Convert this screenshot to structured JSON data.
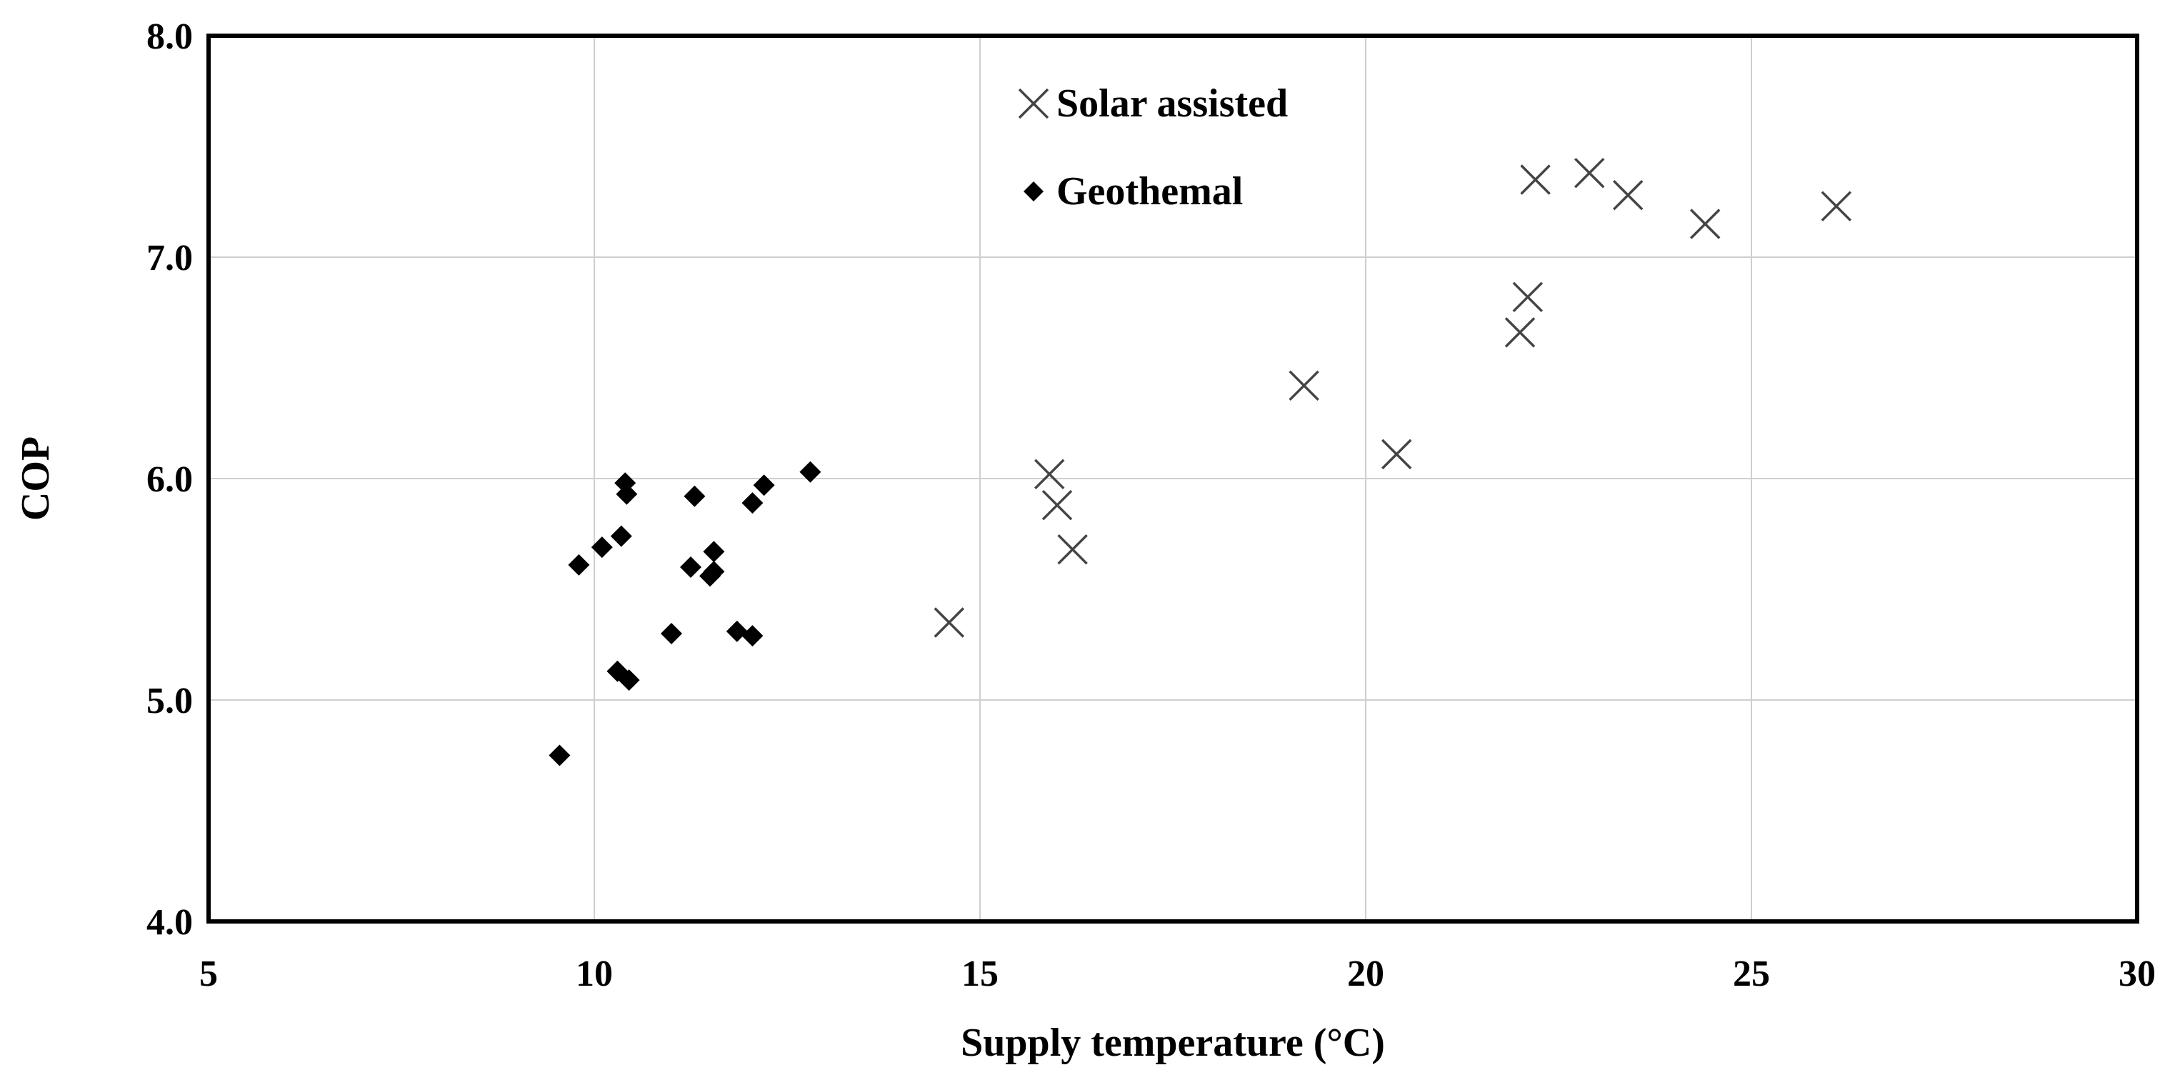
{
  "chart_data": {
    "type": "scatter",
    "title": "",
    "xlabel": "Supply temperature (°C)",
    "ylabel": "COP",
    "xlim": [
      5,
      30
    ],
    "ylim": [
      4.0,
      8.0
    ],
    "x_ticks": [
      "5",
      "10",
      "15",
      "20",
      "25",
      "30"
    ],
    "y_ticks": [
      "4.0",
      "5.0",
      "6.0",
      "7.0",
      "8.0"
    ],
    "grid": true,
    "legend_position": "top-center",
    "series": [
      {
        "name": "Solar assisted",
        "marker": "cross",
        "color": "#444444",
        "points": [
          [
            14.6,
            5.35
          ],
          [
            15.9,
            6.02
          ],
          [
            16.0,
            5.88
          ],
          [
            16.2,
            5.68
          ],
          [
            19.2,
            6.42
          ],
          [
            20.4,
            6.11
          ],
          [
            22.0,
            6.66
          ],
          [
            22.1,
            6.82
          ],
          [
            22.2,
            7.35
          ],
          [
            22.9,
            7.38
          ],
          [
            23.4,
            7.28
          ],
          [
            24.4,
            7.15
          ],
          [
            26.1,
            7.23
          ]
        ]
      },
      {
        "name": "Geothemal",
        "marker": "diamond",
        "color": "#000000",
        "points": [
          [
            9.55,
            4.75
          ],
          [
            9.8,
            5.61
          ],
          [
            10.1,
            5.69
          ],
          [
            10.35,
            5.74
          ],
          [
            10.3,
            5.13
          ],
          [
            10.45,
            5.09
          ],
          [
            10.4,
            5.98
          ],
          [
            10.42,
            5.93
          ],
          [
            11.0,
            5.3
          ],
          [
            11.25,
            5.6
          ],
          [
            11.3,
            5.92
          ],
          [
            11.5,
            5.56
          ],
          [
            11.55,
            5.67
          ],
          [
            11.55,
            5.58
          ],
          [
            11.85,
            5.31
          ],
          [
            12.05,
            5.29
          ],
          [
            12.05,
            5.89
          ],
          [
            12.2,
            5.97
          ],
          [
            12.8,
            6.03
          ]
        ]
      }
    ]
  }
}
